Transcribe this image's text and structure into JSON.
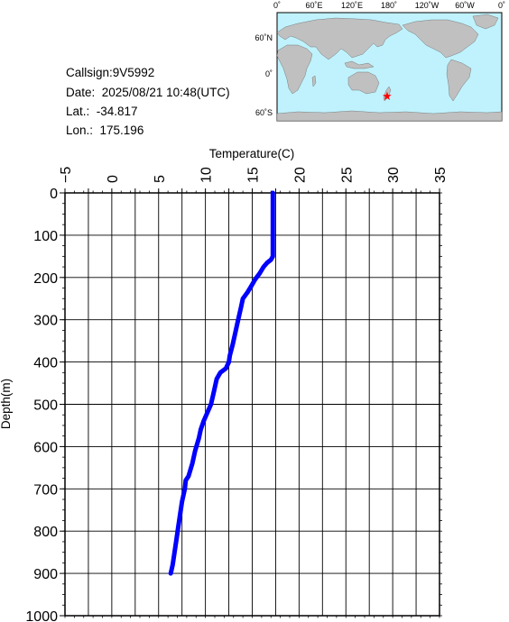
{
  "info": {
    "callsign": "Callsign:9V5992",
    "date": "Date:  2025/08/21 10:48(UTC)",
    "lat": "Lat.:  -34.817",
    "lon": "Lon.:  175.196"
  },
  "map": {
    "top_ticks": [
      "0˚",
      "60˚E",
      "120˚E",
      "180˚",
      "120˚W",
      "60˚W",
      "0˚"
    ],
    "lat_ticks": [
      "60˚N",
      "0˚",
      "60˚S"
    ],
    "marker": "star",
    "colors": {
      "ocean": "#bff2fd",
      "land": "#c0c0c0",
      "marker": "#ff0000"
    }
  },
  "chart_data": {
    "type": "line",
    "xlabel": "Temperature(C)",
    "ylabel": "Depth(m)",
    "xlim": [
      -5,
      35
    ],
    "ylim": [
      0,
      1000
    ],
    "y_inverted": true,
    "x_axis_position": "top",
    "xticks": [
      "-5",
      "0",
      "5",
      "10",
      "15",
      "20",
      "25",
      "30",
      "35"
    ],
    "yticks": [
      "0",
      "100",
      "200",
      "300",
      "400",
      "500",
      "600",
      "700",
      "800",
      "900",
      "1000"
    ],
    "grid": true,
    "series": [
      {
        "color": "#0000ff",
        "points": [
          [
            17.2,
            0
          ],
          [
            17.2,
            50
          ],
          [
            17.2,
            100
          ],
          [
            17.2,
            150
          ],
          [
            17.0,
            158
          ],
          [
            16.6,
            165
          ],
          [
            16.2,
            175
          ],
          [
            15.8,
            190
          ],
          [
            15.3,
            205
          ],
          [
            14.9,
            220
          ],
          [
            14.5,
            235
          ],
          [
            14.0,
            250
          ],
          [
            13.8,
            270
          ],
          [
            13.5,
            300
          ],
          [
            13.2,
            330
          ],
          [
            12.9,
            360
          ],
          [
            12.6,
            385
          ],
          [
            12.5,
            400
          ],
          [
            12.2,
            415
          ],
          [
            11.6,
            425
          ],
          [
            11.2,
            440
          ],
          [
            10.9,
            470
          ],
          [
            10.6,
            500
          ],
          [
            10.2,
            520
          ],
          [
            9.8,
            540
          ],
          [
            9.5,
            560
          ],
          [
            9.3,
            580
          ],
          [
            8.9,
            610
          ],
          [
            8.6,
            640
          ],
          [
            8.2,
            670
          ],
          [
            7.9,
            680
          ],
          [
            7.8,
            700
          ],
          [
            7.5,
            730
          ],
          [
            7.3,
            760
          ],
          [
            7.1,
            790
          ],
          [
            6.9,
            820
          ],
          [
            6.7,
            850
          ],
          [
            6.5,
            880
          ],
          [
            6.3,
            900
          ]
        ]
      }
    ]
  }
}
